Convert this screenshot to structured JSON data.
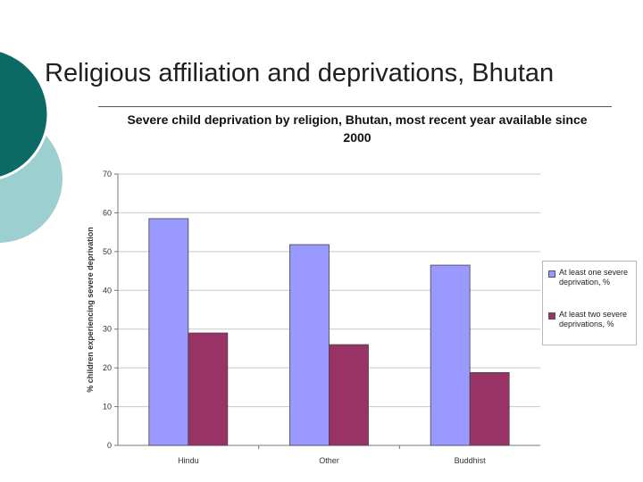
{
  "slide": {
    "title": "Religious affiliation and deprivations, Bhutan",
    "colors": {
      "teal_dark": "#0b6a65",
      "teal_light": "#9ccfcf"
    }
  },
  "chart_data": {
    "type": "bar",
    "title": "Severe child deprivation by religion, Bhutan, most recent year available since 2000",
    "categories": [
      "Hindu",
      "Other",
      "Buddhist"
    ],
    "series": [
      {
        "name": "At least one severe deprivation, %",
        "values": [
          58.5,
          51.8,
          46.5
        ],
        "color": "#9999ff"
      },
      {
        "name": "At least two severe deprivations, %",
        "values": [
          29,
          26,
          18.8
        ],
        "color": "#993366"
      }
    ],
    "xlabel": "",
    "ylabel": "% children experiencing severe deprivation",
    "ylim": [
      0,
      70
    ],
    "yticks": [
      0,
      10,
      20,
      30,
      40,
      50,
      60,
      70
    ],
    "grid": true,
    "legend": "right"
  }
}
